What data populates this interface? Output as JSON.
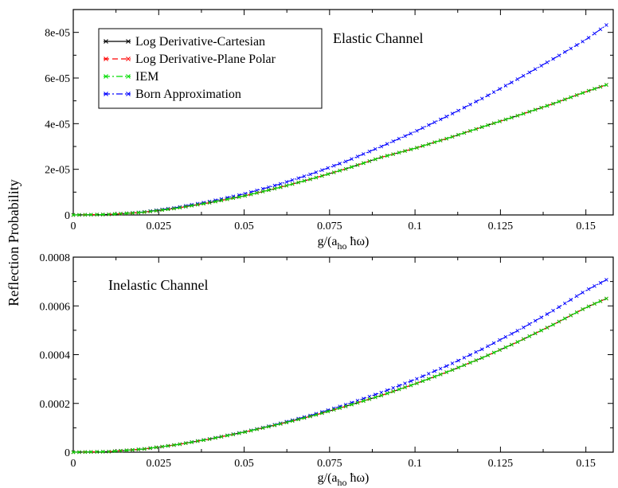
{
  "figure": {
    "ylabel": "Reflection Probability"
  },
  "legend": {
    "entries": [
      {
        "name": "Log Derivative-Cartesian",
        "color": "#000000",
        "dash": "solid"
      },
      {
        "name": "Log Derivative-Plane Polar",
        "color": "#ff0000",
        "dash": "dashed"
      },
      {
        "name": "IEM",
        "color": "#00dd00",
        "dash": "dashdot"
      },
      {
        "name": "Born Approximation",
        "color": "#0000ff",
        "dash": "dashdot"
      }
    ]
  },
  "chart_data": [
    {
      "type": "line",
      "annotation": "Elastic Channel",
      "xlabel": "g/(a_ho ħω)",
      "xlabel_parts": {
        "pre": "g/(a",
        "sub": "ho",
        "post": " ħω)"
      },
      "xlim": [
        0,
        0.158
      ],
      "ylim": [
        0,
        9e-05
      ],
      "xticks": [
        0,
        0.025,
        0.05,
        0.075,
        0.1,
        0.125,
        0.15
      ],
      "xtick_labels": [
        "0",
        "0.025",
        "0.05",
        "0.075",
        "0.1",
        "0.125",
        "0.15"
      ],
      "yticks": [
        0,
        2e-05,
        4e-05,
        6e-05,
        8e-05
      ],
      "ytick_labels": [
        "0",
        "2e-05",
        "4e-05",
        "6e-05",
        "8e-05"
      ],
      "grid": false,
      "legend_position": "top-left",
      "x": [
        0,
        0.01,
        0.02,
        0.03,
        0.04,
        0.05,
        0.06,
        0.07,
        0.08,
        0.09,
        0.1,
        0.11,
        0.12,
        0.13,
        0.14,
        0.15,
        0.156
      ],
      "series": [
        {
          "name": "Log Derivative-Cartesian",
          "values": [
            0,
            2e-07,
            1.1e-06,
            2.9e-06,
            5.4e-06,
            8.3e-06,
            1.19e-05,
            1.59e-05,
            2.03e-05,
            2.52e-05,
            2.92e-05,
            3.38e-05,
            3.87e-05,
            4.35e-05,
            4.85e-05,
            5.4e-05,
            5.7e-05
          ]
        },
        {
          "name": "Log Derivative-Plane Polar",
          "values": [
            0,
            2e-07,
            1.1e-06,
            2.9e-06,
            5.4e-06,
            8.3e-06,
            1.19e-05,
            1.59e-05,
            2.03e-05,
            2.52e-05,
            2.92e-05,
            3.38e-05,
            3.87e-05,
            4.35e-05,
            4.85e-05,
            5.4e-05,
            5.7e-05
          ]
        },
        {
          "name": "IEM",
          "values": [
            0,
            2e-07,
            1.1e-06,
            2.9e-06,
            5.4e-06,
            8.3e-06,
            1.19e-05,
            1.59e-05,
            2.03e-05,
            2.52e-05,
            2.92e-05,
            3.38e-05,
            3.87e-05,
            4.35e-05,
            4.85e-05,
            5.4e-05,
            5.7e-05
          ]
        },
        {
          "name": "Born Approximation",
          "values": [
            0,
            2e-07,
            1.2e-06,
            3.2e-06,
            5.9e-06,
            9.2e-06,
            1.33e-05,
            1.81e-05,
            2.36e-05,
            2.99e-05,
            3.65e-05,
            4.37e-05,
            5.13e-05,
            5.95e-05,
            6.8e-05,
            7.68e-05,
            8.32e-05
          ]
        }
      ]
    },
    {
      "type": "line",
      "annotation": "Inelastic Channel",
      "xlabel": "g/(a_ho ħω)",
      "xlabel_parts": {
        "pre": "g/(a",
        "sub": "ho",
        "post": " ħω)"
      },
      "xlim": [
        0,
        0.158
      ],
      "ylim": [
        0,
        0.0008
      ],
      "xticks": [
        0,
        0.025,
        0.05,
        0.075,
        0.1,
        0.125,
        0.15
      ],
      "xtick_labels": [
        "0",
        "0.025",
        "0.05",
        "0.075",
        "0.1",
        "0.125",
        "0.15"
      ],
      "yticks": [
        0,
        0.0002,
        0.0004,
        0.0006,
        0.0008
      ],
      "ytick_labels": [
        "0",
        "0.0002",
        "0.0004",
        "0.0006",
        "0.0008"
      ],
      "grid": false,
      "x": [
        0,
        0.01,
        0.02,
        0.03,
        0.04,
        0.05,
        0.06,
        0.07,
        0.08,
        0.09,
        0.1,
        0.11,
        0.12,
        0.13,
        0.14,
        0.15,
        0.156
      ],
      "series": [
        {
          "name": "Log Derivative-Cartesian",
          "values": [
            0,
            2e-06,
            1.2e-05,
            3e-05,
            5.4e-05,
            8.2e-05,
            0.000114,
            0.000149,
            0.000189,
            0.000232,
            0.00028,
            0.000332,
            0.000389,
            0.000452,
            0.00052,
            0.000593,
            0.00063
          ]
        },
        {
          "name": "Log Derivative-Plane Polar",
          "values": [
            0,
            2e-06,
            1.2e-05,
            3e-05,
            5.4e-05,
            8.2e-05,
            0.000114,
            0.000149,
            0.000189,
            0.000232,
            0.00028,
            0.000332,
            0.000389,
            0.000452,
            0.00052,
            0.000593,
            0.00063
          ]
        },
        {
          "name": "IEM",
          "values": [
            0,
            2e-06,
            1.2e-05,
            3e-05,
            5.4e-05,
            8.2e-05,
            0.000114,
            0.000149,
            0.000189,
            0.000232,
            0.00028,
            0.000332,
            0.000389,
            0.000452,
            0.00052,
            0.000593,
            0.00063
          ]
        },
        {
          "name": "Born Approximation",
          "values": [
            0,
            2e-06,
            1.2e-05,
            3e-05,
            5.5e-05,
            8.3e-05,
            0.000116,
            0.000153,
            0.000196,
            0.000244,
            0.000298,
            0.000358,
            0.000425,
            0.000498,
            0.000577,
            0.000663,
            0.000707
          ]
        }
      ]
    }
  ]
}
